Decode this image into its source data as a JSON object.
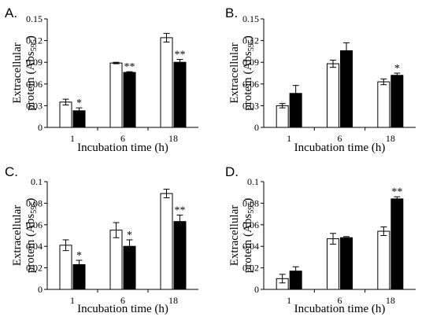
{
  "chart_data": [
    {
      "panel": "A.",
      "type": "bar",
      "categories": [
        "1",
        "6",
        "18"
      ],
      "xlabel": "Incubation time (h)",
      "ylabel": "Extracellular protein (Abs595)",
      "ylim": [
        0,
        0.15
      ],
      "yticks": [
        "0",
        "0.03",
        "0.06",
        "0.09",
        "0.12",
        "0.15"
      ],
      "series": [
        {
          "fill": "#ffffff",
          "values": [
            0.035,
            0.089,
            0.124
          ],
          "errors": [
            0.004,
            0.001,
            0.006
          ],
          "labels": [
            "",
            "",
            ""
          ]
        },
        {
          "fill": "#000000",
          "values": [
            0.023,
            0.076,
            0.09
          ],
          "errors": [
            0.004,
            0.001,
            0.004
          ],
          "labels": [
            "*",
            "**",
            "**"
          ]
        }
      ]
    },
    {
      "panel": "B.",
      "type": "bar",
      "categories": [
        "1",
        "6",
        "18"
      ],
      "xlabel": "Incubation time (h)",
      "ylabel": "Extracellular protein (Abs595)",
      "ylim": [
        0,
        0.15
      ],
      "yticks": [
        "0",
        "0.03",
        "0.06",
        "0.09",
        "0.12",
        "0.15"
      ],
      "series": [
        {
          "fill": "#ffffff",
          "values": [
            0.03,
            0.088,
            0.063
          ],
          "errors": [
            0.003,
            0.005,
            0.004
          ],
          "labels": [
            "",
            "",
            ""
          ]
        },
        {
          "fill": "#000000",
          "values": [
            0.047,
            0.106,
            0.072
          ],
          "errors": [
            0.011,
            0.011,
            0.003
          ],
          "labels": [
            "",
            "",
            "*"
          ]
        }
      ]
    },
    {
      "panel": "C.",
      "type": "bar",
      "categories": [
        "1",
        "6",
        "18"
      ],
      "xlabel": "Incubation time (h)",
      "ylabel": "Extracellular protein (Abs595)",
      "ylim": [
        0,
        0.1
      ],
      "yticks": [
        "0",
        "0.02",
        "0.04",
        "0.06",
        "0.08",
        "0.1"
      ],
      "series": [
        {
          "fill": "#ffffff",
          "values": [
            0.041,
            0.055,
            0.089
          ],
          "errors": [
            0.005,
            0.007,
            0.004
          ],
          "labels": [
            "",
            "",
            ""
          ]
        },
        {
          "fill": "#000000",
          "values": [
            0.023,
            0.04,
            0.063
          ],
          "errors": [
            0.004,
            0.006,
            0.006
          ],
          "labels": [
            "*",
            "*",
            "**"
          ]
        }
      ]
    },
    {
      "panel": "D.",
      "type": "bar",
      "categories": [
        "1",
        "6",
        "18"
      ],
      "xlabel": "Incubation time (h)",
      "ylabel": "Extracellular protein (Abs595)",
      "ylim": [
        0,
        0.1
      ],
      "yticks": [
        "0",
        "0.02",
        "0.04",
        "0.06",
        "0.08",
        "0.1"
      ],
      "series": [
        {
          "fill": "#ffffff",
          "values": [
            0.01,
            0.047,
            0.054
          ],
          "errors": [
            0.004,
            0.005,
            0.004
          ],
          "labels": [
            "",
            "",
            ""
          ]
        },
        {
          "fill": "#000000",
          "values": [
            0.017,
            0.048,
            0.084
          ],
          "errors": [
            0.004,
            0.001,
            0.002
          ],
          "labels": [
            "",
            "",
            "**"
          ]
        }
      ]
    }
  ]
}
